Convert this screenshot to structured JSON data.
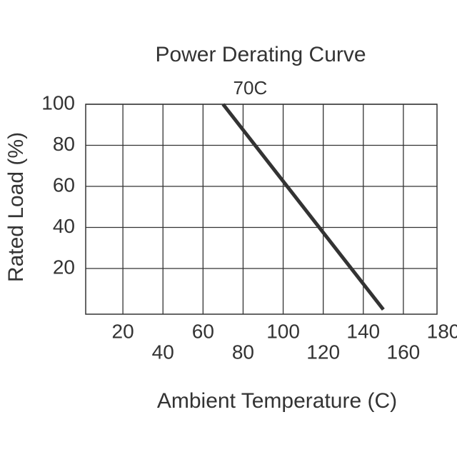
{
  "chart_data": {
    "type": "line",
    "title": "Power Derating Curve",
    "annotation": "70C",
    "x_label": "Ambient Temperature (C)",
    "y_label": "Rated Load (%)",
    "x": [
      70,
      150
    ],
    "series": [
      {
        "color": "#333333",
        "values": [
          100,
          0
        ]
      }
    ],
    "xlim": [
      0,
      180
    ],
    "xticks": [
      20,
      40,
      60,
      80,
      100,
      120,
      140,
      160,
      180
    ],
    "ylim": [
      0,
      100
    ],
    "yticks": [
      20,
      40,
      60,
      80,
      100
    ],
    "grid": true
  }
}
